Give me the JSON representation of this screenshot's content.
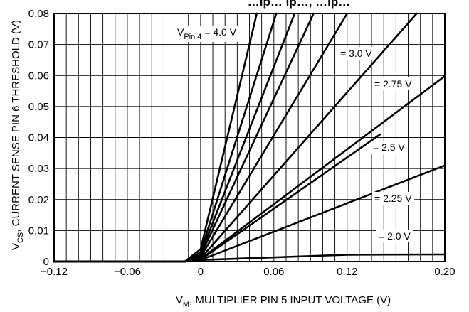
{
  "chart_data": {
    "type": "line",
    "title": "…ip… ip…, …ip…",
    "xlabel": {
      "main": "V",
      "sub": "M",
      "rest": ", MULTIPLIER PIN 5 INPUT VOLTAGE (V)"
    },
    "ylabel": {
      "main": "V",
      "sub": "CS",
      "rest": ", CURRENT SENSE PIN 6 THRESHOLD (V)"
    },
    "xlim": [
      -0.12,
      0.2
    ],
    "ylim": [
      0,
      0.08
    ],
    "x_ticks": [
      -0.12,
      -0.06,
      0,
      0.06,
      0.12,
      0.2
    ],
    "x_tick_labels": [
      "−0.12",
      "−0.06",
      "0",
      "0.06",
      "0.12",
      "0.20"
    ],
    "y_ticks": [
      0,
      0.01,
      0.02,
      0.03,
      0.04,
      0.05,
      0.06,
      0.07,
      0.08
    ],
    "y_tick_labels": [
      "0",
      "0.01",
      "0.02",
      "0.03",
      "0.04",
      "0.05",
      "0.06",
      "0.07",
      "0.08"
    ],
    "grid": true,
    "series": [
      {
        "name": "2.0 V",
        "label": {
          "main": "= 2.0 V"
        },
        "x": [
          -0.12,
          -0.013,
          0,
          0.12,
          0.2
        ],
        "y": [
          0,
          0,
          0.0005,
          0.0022,
          0.0023
        ]
      },
      {
        "name": "2.25 V",
        "label": {
          "main": "= 2.25 V"
        },
        "x": [
          -0.12,
          -0.013,
          0,
          0.2
        ],
        "y": [
          0,
          0,
          0.0005,
          0.031
        ]
      },
      {
        "name": "2.5 V",
        "label": {
          "main": "= 2.5 V"
        },
        "x": [
          -0.12,
          -0.013,
          0,
          0.147
        ],
        "y": [
          0,
          0,
          0.0006,
          0.041
        ]
      },
      {
        "name": "2.75 V",
        "label": {
          "main": "= 2.75 V"
        },
        "x": [
          -0.12,
          -0.013,
          0,
          0.2
        ],
        "y": [
          0,
          0,
          0.0008,
          0.0598
        ]
      },
      {
        "name": "3.0 V",
        "label": {
          "main": "= 3.0 V"
        },
        "x": [
          -0.12,
          -0.013,
          0,
          0.177
        ],
        "y": [
          0,
          0,
          0.001,
          0.08
        ]
      },
      {
        "name": "",
        "x": [
          -0.12,
          -0.013,
          0,
          0.12
        ],
        "y": [
          0,
          0,
          0.0015,
          0.08
        ]
      },
      {
        "name": "",
        "x": [
          -0.12,
          -0.013,
          0,
          0.0925
        ],
        "y": [
          0,
          0,
          0.002,
          0.08
        ]
      },
      {
        "name": "",
        "x": [
          -0.12,
          -0.013,
          0,
          0.077
        ],
        "y": [
          0,
          0,
          0.0025,
          0.08
        ]
      },
      {
        "name": "",
        "x": [
          -0.12,
          -0.013,
          0,
          0.062
        ],
        "y": [
          0,
          0,
          0.003,
          0.08
        ]
      },
      {
        "name": "4.0 V",
        "label": {
          "main": "V",
          "sub": "Pin 4",
          "rest": " = 4.0 V"
        },
        "x": [
          -0.12,
          -0.013,
          0,
          0.046
        ],
        "y": [
          0,
          0,
          0.004,
          0.08
        ]
      }
    ]
  }
}
